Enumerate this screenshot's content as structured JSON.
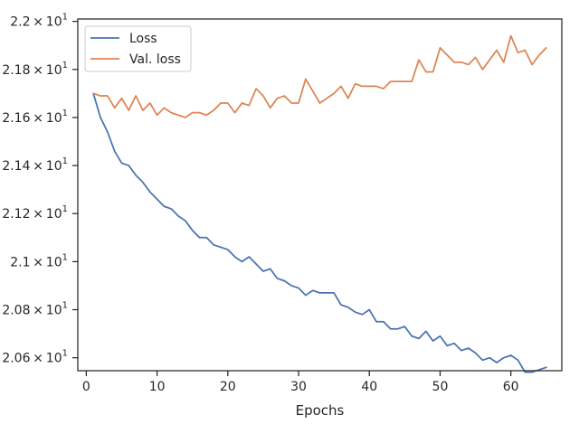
{
  "chart_data": {
    "type": "line",
    "title": "",
    "xlabel": "Epochs",
    "ylabel": "",
    "xlim": [
      -1.2,
      67.2
    ],
    "ylim": [
      20.546,
      22.01
    ],
    "grid": false,
    "legend_position": "top-left",
    "x_ticks": [
      {
        "value": 0,
        "label": "0"
      },
      {
        "value": 10,
        "label": "10"
      },
      {
        "value": 20,
        "label": "20"
      },
      {
        "value": 30,
        "label": "30"
      },
      {
        "value": 40,
        "label": "40"
      },
      {
        "value": 50,
        "label": "50"
      },
      {
        "value": 60,
        "label": "60"
      }
    ],
    "y_ticks": [
      {
        "value": 20.6,
        "base": "2.06",
        "exp": "1"
      },
      {
        "value": 20.8,
        "base": "2.08",
        "exp": "1"
      },
      {
        "value": 21.0,
        "base": "2.1",
        "exp": "1"
      },
      {
        "value": 21.2,
        "base": "2.12",
        "exp": "1"
      },
      {
        "value": 21.4,
        "base": "2.14",
        "exp": "1"
      },
      {
        "value": 21.6,
        "base": "2.16",
        "exp": "1"
      },
      {
        "value": 21.8,
        "base": "2.18",
        "exp": "1"
      },
      {
        "value": 22.0,
        "base": "2.2",
        "exp": "1"
      }
    ],
    "x": [
      1,
      2,
      3,
      4,
      5,
      6,
      7,
      8,
      9,
      10,
      11,
      12,
      13,
      14,
      15,
      16,
      17,
      18,
      19,
      20,
      21,
      22,
      23,
      24,
      25,
      26,
      27,
      28,
      29,
      30,
      31,
      32,
      33,
      34,
      35,
      36,
      37,
      38,
      39,
      40,
      41,
      42,
      43,
      44,
      45,
      46,
      47,
      48,
      49,
      50,
      51,
      52,
      53,
      54,
      55,
      56,
      57,
      58,
      59,
      60,
      61,
      62,
      63,
      64,
      65
    ],
    "series": [
      {
        "name": "Loss",
        "color": "#4c72b0",
        "values": [
          21.7,
          21.6,
          21.54,
          21.46,
          21.41,
          21.4,
          21.36,
          21.33,
          21.29,
          21.26,
          21.23,
          21.22,
          21.19,
          21.17,
          21.13,
          21.1,
          21.1,
          21.07,
          21.06,
          21.05,
          21.02,
          21.0,
          21.02,
          20.99,
          20.96,
          20.97,
          20.93,
          20.92,
          20.9,
          20.89,
          20.86,
          20.88,
          20.87,
          20.87,
          20.87,
          20.82,
          20.81,
          20.79,
          20.78,
          20.8,
          20.75,
          20.75,
          20.72,
          20.72,
          20.73,
          20.69,
          20.68,
          20.71,
          20.67,
          20.69,
          20.65,
          20.66,
          20.63,
          20.64,
          20.62,
          20.59,
          20.6,
          20.58,
          20.6,
          20.61,
          20.59,
          20.54,
          20.54,
          20.55,
          20.56
        ]
      },
      {
        "name": "Val. loss",
        "color": "#dd8452",
        "values": [
          21.7,
          21.69,
          21.69,
          21.64,
          21.68,
          21.63,
          21.69,
          21.63,
          21.66,
          21.61,
          21.64,
          21.62,
          21.61,
          21.6,
          21.62,
          21.62,
          21.61,
          21.63,
          21.66,
          21.66,
          21.62,
          21.66,
          21.65,
          21.72,
          21.69,
          21.64,
          21.68,
          21.69,
          21.66,
          21.66,
          21.76,
          21.71,
          21.66,
          21.68,
          21.7,
          21.73,
          21.68,
          21.74,
          21.73,
          21.73,
          21.73,
          21.72,
          21.75,
          21.75,
          21.75,
          21.75,
          21.84,
          21.79,
          21.79,
          21.89,
          21.86,
          21.83,
          21.83,
          21.82,
          21.85,
          21.8,
          21.84,
          21.88,
          21.83,
          21.94,
          21.87,
          21.88,
          21.82,
          21.86,
          21.89
        ]
      }
    ]
  }
}
